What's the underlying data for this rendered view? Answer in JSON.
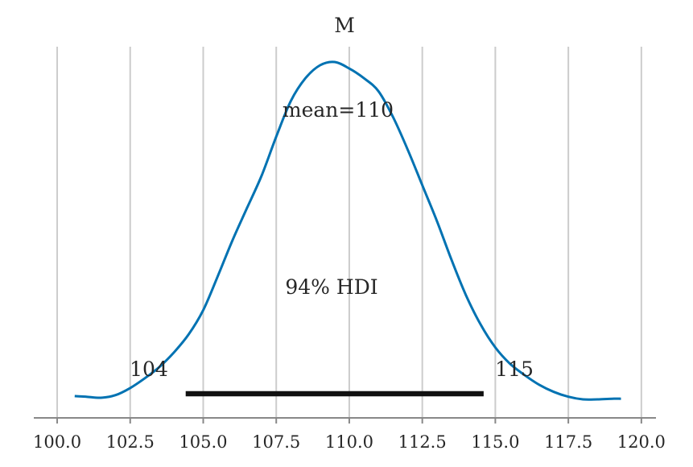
{
  "chart_data": {
    "type": "line",
    "title": "M",
    "xlabel": "",
    "ylabel": "",
    "xlim": [
      99.2,
      120.5
    ],
    "ylim": [
      0,
      1.05
    ],
    "x_ticks": [
      100.0,
      102.5,
      105.0,
      107.5,
      110.0,
      112.5,
      115.0,
      117.5,
      120.0
    ],
    "x_tick_labels": [
      "100.0",
      "102.5",
      "105.0",
      "107.5",
      "110.0",
      "112.5",
      "115.0",
      "117.5",
      "120.0"
    ],
    "grid": "vertical",
    "series": [
      {
        "color": "#0072b2",
        "x": [
          100.6,
          101.0,
          101.5,
          102.0,
          102.5,
          103.0,
          103.5,
          104.0,
          104.5,
          105.0,
          105.5,
          106.0,
          106.5,
          107.0,
          107.5,
          108.0,
          108.5,
          109.0,
          109.5,
          110.0,
          110.5,
          111.0,
          111.5,
          112.0,
          112.5,
          113.0,
          113.5,
          114.0,
          114.5,
          115.0,
          115.5,
          116.0,
          116.5,
          117.0,
          117.5,
          118.0,
          118.5,
          119.0,
          119.3
        ],
        "y": [
          0.02,
          0.018,
          0.015,
          0.023,
          0.045,
          0.075,
          0.11,
          0.155,
          0.21,
          0.285,
          0.39,
          0.5,
          0.6,
          0.7,
          0.82,
          0.93,
          1.0,
          1.04,
          1.05,
          1.03,
          1.0,
          0.96,
          0.88,
          0.78,
          0.67,
          0.56,
          0.44,
          0.33,
          0.24,
          0.17,
          0.12,
          0.085,
          0.055,
          0.033,
          0.018,
          0.01,
          0.01,
          0.012,
          0.012
        ]
      }
    ],
    "hdi": {
      "low": 104.4,
      "high": 114.6,
      "low_label": "104",
      "high_label": "115",
      "label": "94% HDI",
      "color": "#111111"
    },
    "mean_label": "mean=110"
  }
}
